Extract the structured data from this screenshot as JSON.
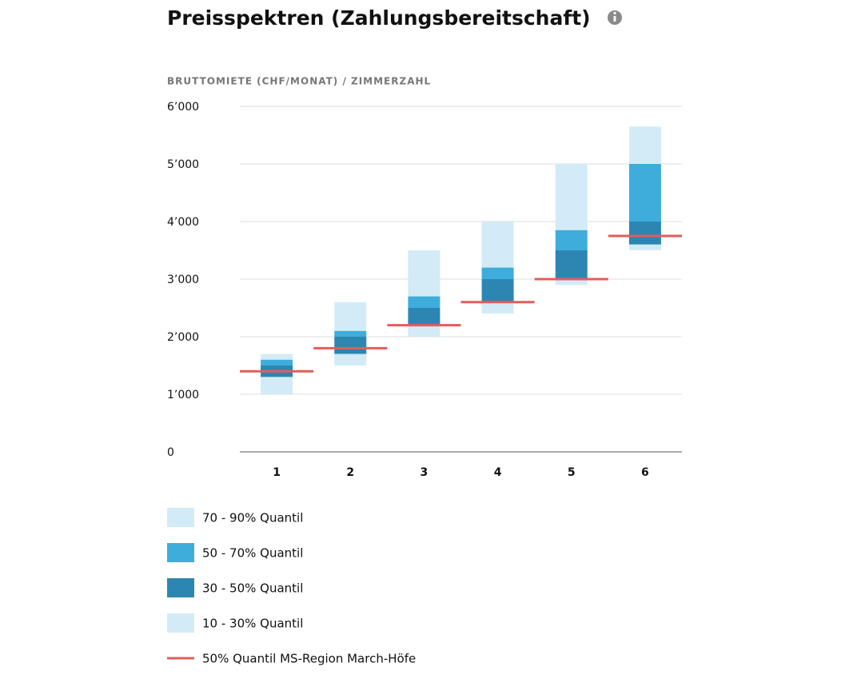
{
  "chart_data": {
    "type": "floating_bar",
    "title": "Preisspektren (Zahlungsbereitschaft)",
    "ylabel": "BRUTTOMIETE (CHF/MONAT) / ZIMMERZAHL",
    "categories": [
      "1",
      "2",
      "3",
      "4",
      "5",
      "6"
    ],
    "ylim": [
      0,
      6000
    ],
    "yticks": [
      0,
      {
        "value": 1000,
        "label": "1’000"
      },
      {
        "value": 2000,
        "label": "2’000"
      },
      {
        "value": 3000,
        "label": "3’000"
      },
      {
        "value": 4000,
        "label": "4’000"
      },
      {
        "value": 5000,
        "label": "5’000"
      },
      {
        "value": 6000,
        "label": "6’000"
      }
    ],
    "grid": true,
    "series": [
      {
        "name": "70 - 90% Quantil",
        "color": "#d3ebf6",
        "values": [
          [
            1600,
            1700
          ],
          [
            2100,
            2600
          ],
          [
            2700,
            3500
          ],
          [
            3200,
            4000
          ],
          [
            3850,
            5000
          ],
          [
            5000,
            5650
          ]
        ]
      },
      {
        "name": "50 - 70% Quantil",
        "color": "#3eaddb",
        "values": [
          [
            1500,
            1600
          ],
          [
            2000,
            2100
          ],
          [
            2500,
            2700
          ],
          [
            3000,
            3200
          ],
          [
            3500,
            3850
          ],
          [
            4000,
            5000
          ]
        ]
      },
      {
        "name": "30 - 50% Quantil",
        "color": "#2d86b2",
        "values": [
          [
            1300,
            1500
          ],
          [
            1700,
            2000
          ],
          [
            2200,
            2500
          ],
          [
            2600,
            3000
          ],
          [
            3000,
            3500
          ],
          [
            3600,
            4000
          ]
        ]
      },
      {
        "name": "10 - 30% Quantil",
        "color": "#d3ebf6",
        "values": [
          [
            1000,
            1300
          ],
          [
            1500,
            1700
          ],
          [
            2000,
            2200
          ],
          [
            2400,
            2600
          ],
          [
            2900,
            3000
          ],
          [
            3500,
            3600
          ]
        ]
      }
    ],
    "reference_line": {
      "name": "50% Quantil MS-Region March-Höfe",
      "color": "#e35d5b",
      "values": [
        1400,
        1800,
        2200,
        2600,
        3000,
        3750
      ]
    }
  }
}
